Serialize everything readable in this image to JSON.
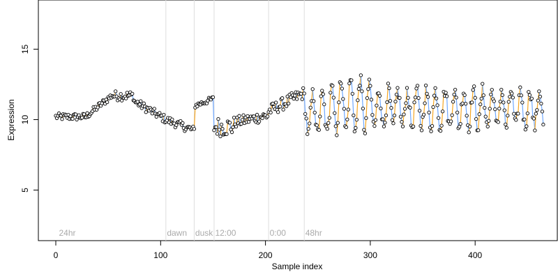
{
  "chart_data": {
    "type": "scatter",
    "title": "",
    "xlabel": "Sample index",
    "ylabel": "Expression",
    "xlim": [
      0,
      470
    ],
    "ylim": [
      1.5,
      19
    ],
    "x_ticks": [
      0,
      100,
      200,
      300,
      400
    ],
    "y_ticks": [
      5,
      10,
      15
    ],
    "grid": false,
    "colors": {
      "line": "#999999",
      "up": "#f5a623",
      "down": "#6fa8ff",
      "point_stroke": "#000000",
      "point_fill": "#ffffff",
      "annotation": "#aaaaaa",
      "divider": "#dddddd"
    },
    "annotations": [
      {
        "x": 3,
        "label": "24hr"
      },
      {
        "x": 106,
        "label": "dawn"
      },
      {
        "x": 133,
        "label": "dusk"
      },
      {
        "x": 152,
        "label": "12:00"
      },
      {
        "x": 204,
        "label": "0:00"
      },
      {
        "x": 238,
        "label": "48hr"
      }
    ],
    "dividers": [
      105,
      132,
      151,
      203,
      237
    ],
    "segments": [
      {
        "x0": 0,
        "x1": 30,
        "kind": "noise",
        "base": 10.2,
        "amp": 0.25
      },
      {
        "x0": 30,
        "x1": 55,
        "kind": "ramp",
        "from": 10.3,
        "to": 11.8,
        "amp": 0.25
      },
      {
        "x0": 55,
        "x1": 75,
        "kind": "noise",
        "base": 11.7,
        "amp": 0.35
      },
      {
        "x0": 75,
        "x1": 105,
        "kind": "ramp",
        "from": 11.3,
        "to": 10.0,
        "amp": 0.3
      },
      {
        "x0": 105,
        "x1": 133,
        "kind": "ramp",
        "from": 10.0,
        "to": 9.2,
        "amp": 0.3
      },
      {
        "x0": 133,
        "x1": 151,
        "kind": "ramp",
        "from": 11.0,
        "to": 11.5,
        "amp": 0.2
      },
      {
        "x0": 151,
        "x1": 170,
        "kind": "noise",
        "base": 9.5,
        "amp": 0.7
      },
      {
        "x0": 170,
        "x1": 203,
        "kind": "ramp",
        "from": 9.8,
        "to": 10.3,
        "amp": 0.4
      },
      {
        "x0": 203,
        "x1": 237,
        "kind": "ramp",
        "from": 10.6,
        "to": 11.9,
        "amp": 0.45
      },
      {
        "x0": 237,
        "x1": 262,
        "kind": "osc",
        "base": 10.4,
        "amp": 1.4,
        "period": 9
      },
      {
        "x0": 262,
        "x1": 300,
        "kind": "osc",
        "base": 11.1,
        "amp": 1.8,
        "period": 9
      },
      {
        "x0": 300,
        "x1": 466,
        "kind": "osc",
        "base": 10.8,
        "amp": 1.3,
        "period": 9
      }
    ],
    "n_points": 466
  }
}
